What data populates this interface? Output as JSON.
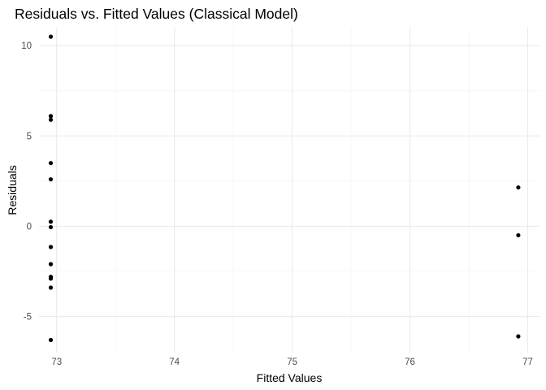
{
  "chart_data": {
    "type": "scatter",
    "title": "Residuals vs. Fitted Values (Classical Model)",
    "xlabel": "Fitted Values",
    "ylabel": "Residuals",
    "xlim": [
      72.85,
      77.1
    ],
    "ylim": [
      -7.0,
      11.0
    ],
    "x_ticks": [
      73,
      74,
      75,
      76,
      77
    ],
    "y_ticks": [
      -5,
      0,
      5,
      10
    ],
    "grid": true,
    "point_color": "#000000",
    "points": [
      {
        "x": 72.95,
        "y": 10.5
      },
      {
        "x": 72.95,
        "y": 6.1
      },
      {
        "x": 72.95,
        "y": 5.9
      },
      {
        "x": 72.95,
        "y": 3.5
      },
      {
        "x": 72.95,
        "y": 2.6
      },
      {
        "x": 72.95,
        "y": 0.25
      },
      {
        "x": 72.95,
        "y": -0.05
      },
      {
        "x": 72.95,
        "y": -1.15
      },
      {
        "x": 72.95,
        "y": -2.1
      },
      {
        "x": 72.95,
        "y": -2.8
      },
      {
        "x": 72.95,
        "y": -2.9
      },
      {
        "x": 72.95,
        "y": -3.4
      },
      {
        "x": 72.95,
        "y": -6.3
      },
      {
        "x": 76.92,
        "y": 2.15
      },
      {
        "x": 76.92,
        "y": -0.5
      },
      {
        "x": 76.92,
        "y": -6.1
      }
    ]
  }
}
